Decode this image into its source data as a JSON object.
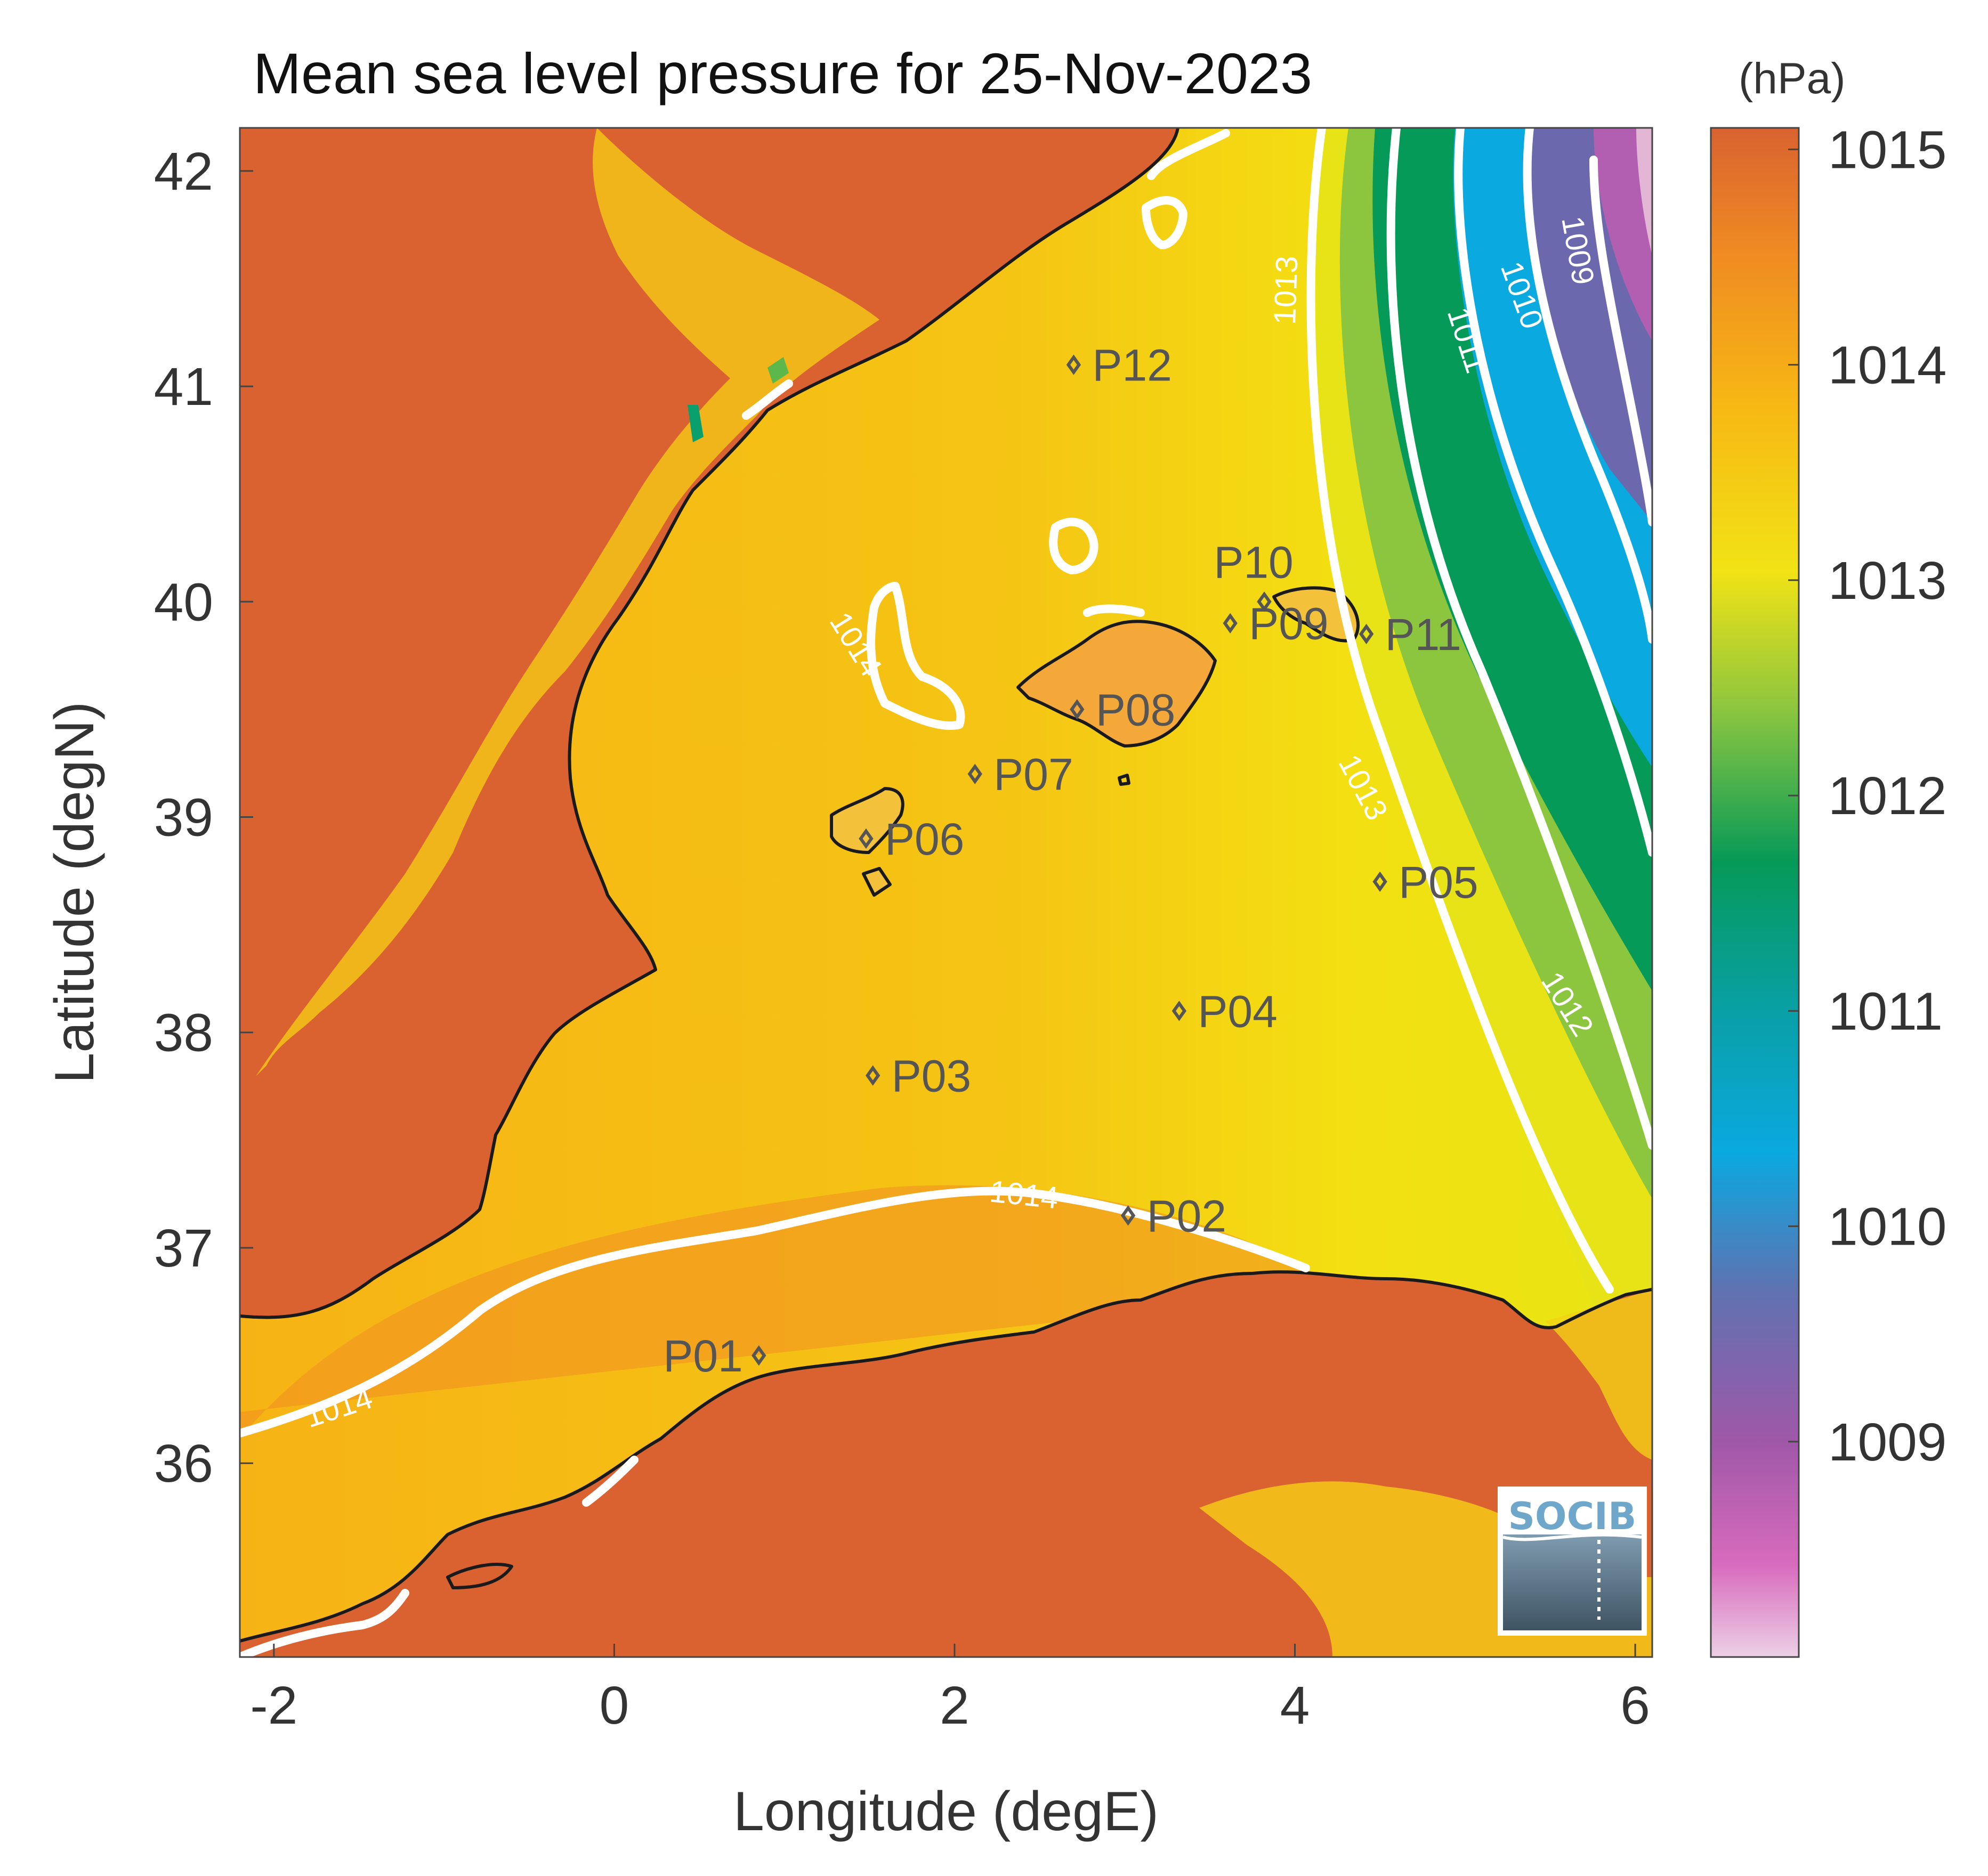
{
  "title": "Mean sea level pressure for 25-Nov-2023",
  "colorbar": {
    "unit": "(hPa)",
    "ticks": [
      "1009",
      "1010",
      "1011",
      "1012",
      "1013",
      "1014",
      "1015"
    ],
    "range": [
      1008,
      1015.1
    ]
  },
  "axes": {
    "xlabel": "Longitude (degE)",
    "ylabel": "Latitude (degN)",
    "xlim": [
      -2.2,
      6.1
    ],
    "ylim": [
      35.1,
      42.2
    ],
    "xticks": [
      "-2",
      "0",
      "2",
      "4",
      "6"
    ],
    "yticks": [
      "36",
      "37",
      "38",
      "39",
      "40",
      "41",
      "42"
    ]
  },
  "contour_labels": [
    "1009",
    "1010",
    "1011",
    "1012",
    "1013",
    "1013",
    "1014",
    "1014",
    "1014"
  ],
  "points": [
    {
      "name": "P01",
      "lon": 0.85,
      "lat": 36.5
    },
    {
      "name": "P02",
      "lon": 3.02,
      "lat": 37.15
    },
    {
      "name": "P03",
      "lon": 1.52,
      "lat": 37.8
    },
    {
      "name": "P04",
      "lon": 3.32,
      "lat": 38.1
    },
    {
      "name": "P05",
      "lon": 4.5,
      "lat": 38.7
    },
    {
      "name": "P06",
      "lon": 1.48,
      "lat": 38.9
    },
    {
      "name": "P07",
      "lon": 2.12,
      "lat": 39.2
    },
    {
      "name": "P08",
      "lon": 2.72,
      "lat": 39.5
    },
    {
      "name": "P09",
      "lon": 3.62,
      "lat": 39.9
    },
    {
      "name": "P10",
      "lon": 3.82,
      "lat": 40.0
    },
    {
      "name": "P11",
      "lon": 4.42,
      "lat": 39.85
    },
    {
      "name": "P12",
      "lon": 2.7,
      "lat": 41.1
    }
  ],
  "logo": {
    "text": "SOCIB"
  },
  "colors": {
    "land": "#d96230",
    "sea_high": "#f7b714",
    "sea_mid": "#f3e012",
    "green": "#069a58",
    "blue": "#0aa9e0",
    "purple": "#8b4fa3",
    "pink": "#d563b7"
  }
}
